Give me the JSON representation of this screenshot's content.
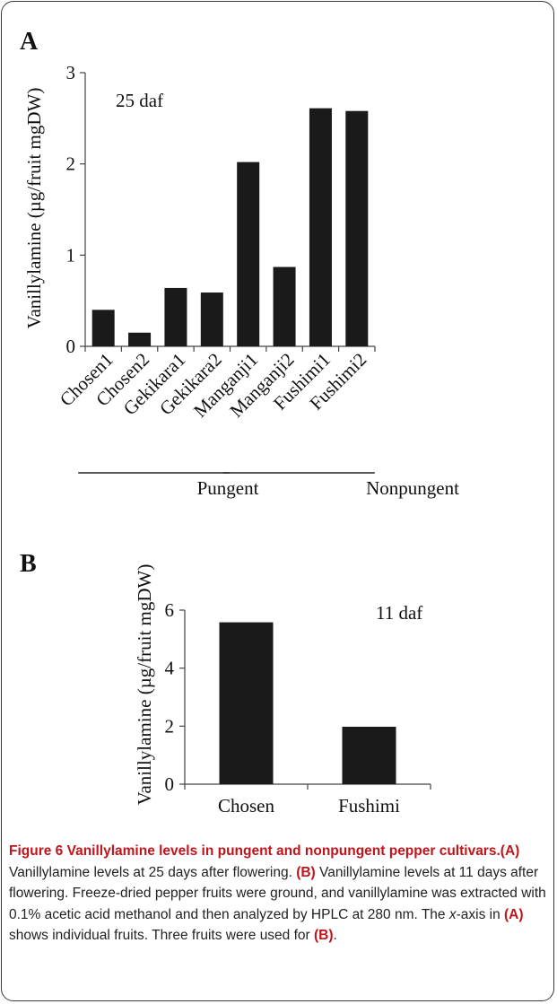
{
  "chart_data": [
    {
      "panel": "A",
      "type": "bar",
      "annotation": "25 daf",
      "ylabel": "Vanillylamine (µg/fruit mgDW)",
      "ylim": [
        0,
        3
      ],
      "yticks": [
        0,
        1,
        2,
        3
      ],
      "grid": false,
      "legend": "none",
      "bar_color": "#1a1a1a",
      "categories": [
        "Chosen1",
        "Chosen2",
        "Gekikara1",
        "Gekikara2",
        "Manganji1",
        "Manganji2",
        "Fushimi1",
        "Fushimi2"
      ],
      "values": [
        0.4,
        0.15,
        0.64,
        0.59,
        2.02,
        0.87,
        2.61,
        2.58
      ],
      "groups": [
        {
          "label": "Pungent",
          "categories": [
            "Chosen1",
            "Chosen2",
            "Gekikara1",
            "Gekikara2"
          ]
        },
        {
          "label": "Nonpungent",
          "categories": [
            "Manganji1",
            "Manganji2",
            "Fushimi1",
            "Fushimi2"
          ]
        }
      ]
    },
    {
      "panel": "B",
      "type": "bar",
      "annotation": "11 daf",
      "ylabel": "Vanillylamine (µg/fruit mgDW)",
      "ylim": [
        0,
        6
      ],
      "yticks": [
        0,
        2,
        4,
        6
      ],
      "grid": false,
      "legend": "none",
      "bar_color": "#1a1a1a",
      "categories": [
        "Chosen",
        "Fushimi"
      ],
      "values": [
        5.58,
        1.98
      ]
    }
  ],
  "caption": {
    "title": "Figure 6 Vanillylamine levels in pungent and nonpungent pepper cultivars.",
    "p1_label": "(A)",
    "p1_text": " Vanillylamine levels at 25 days after flowering. ",
    "p2_label": "(B)",
    "p2_text": " Vanillylamine levels at 11 days after flowering. Freeze-dried pepper fruits were ground, and vanillylamine was extracted with 0.1% acetic acid methanol and then analyzed by HPLC at 280 nm. The ",
    "axis_word": "x",
    "p3_text": "-axis in ",
    "p3_label": "(A)",
    "p4_text": " shows individual fruits. Three fruits were used for ",
    "p4_label": "(B)",
    "p5_text": "."
  }
}
